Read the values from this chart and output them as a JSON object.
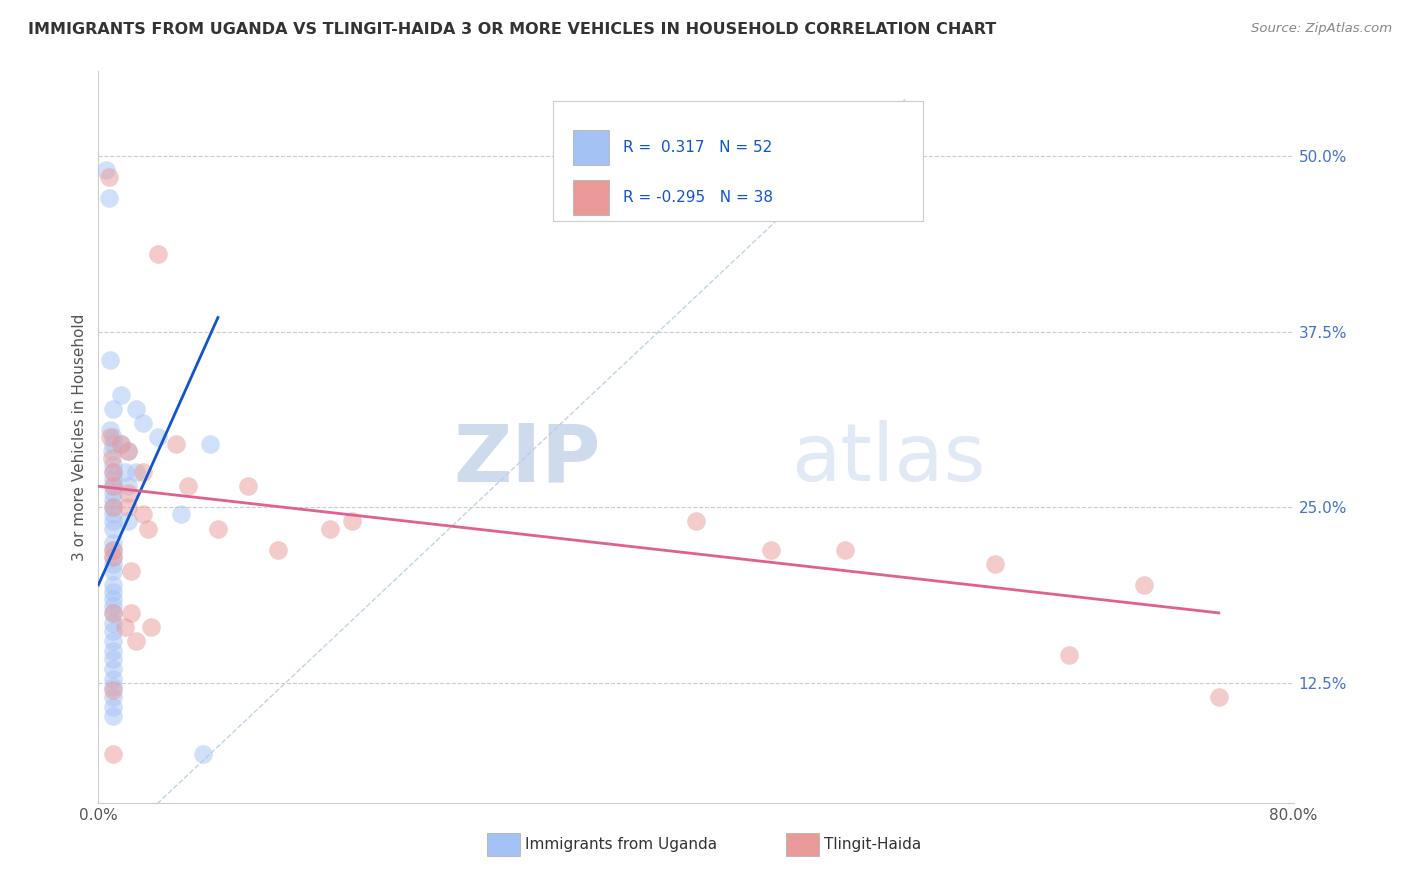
{
  "title": "IMMIGRANTS FROM UGANDA VS TLINGIT-HAIDA 3 OR MORE VEHICLES IN HOUSEHOLD CORRELATION CHART",
  "source": "Source: ZipAtlas.com",
  "ylabel": "3 or more Vehicles in Household",
  "ytick_labels": [
    "50.0%",
    "37.5%",
    "25.0%",
    "12.5%"
  ],
  "ytick_values": [
    0.5,
    0.375,
    0.25,
    0.125
  ],
  "xlim": [
    0.0,
    0.8
  ],
  "ylim": [
    0.04,
    0.56
  ],
  "legend_blue_r": "0.317",
  "legend_blue_n": "52",
  "legend_pink_r": "-0.295",
  "legend_pink_n": "38",
  "legend_label_blue": "Immigrants from Uganda",
  "legend_label_pink": "Tlingit-Haida",
  "blue_color": "#a4c2f4",
  "pink_color": "#ea9999",
  "blue_line_color": "#1155cc",
  "pink_line_color": "#e06090",
  "diagonal_color": "#b0c8e8",
  "watermark_zip": "ZIP",
  "watermark_atlas": "atlas",
  "blue_dots": [
    [
      0.005,
      0.49
    ],
    [
      0.007,
      0.47
    ],
    [
      0.008,
      0.355
    ],
    [
      0.008,
      0.305
    ],
    [
      0.009,
      0.29
    ],
    [
      0.01,
      0.295
    ],
    [
      0.01,
      0.3
    ],
    [
      0.01,
      0.32
    ],
    [
      0.01,
      0.28
    ],
    [
      0.01,
      0.275
    ],
    [
      0.01,
      0.27
    ],
    [
      0.01,
      0.265
    ],
    [
      0.01,
      0.26
    ],
    [
      0.01,
      0.255
    ],
    [
      0.01,
      0.25
    ],
    [
      0.01,
      0.245
    ],
    [
      0.01,
      0.24
    ],
    [
      0.01,
      0.235
    ],
    [
      0.01,
      0.225
    ],
    [
      0.01,
      0.22
    ],
    [
      0.01,
      0.215
    ],
    [
      0.01,
      0.21
    ],
    [
      0.01,
      0.205
    ],
    [
      0.01,
      0.195
    ],
    [
      0.01,
      0.19
    ],
    [
      0.01,
      0.185
    ],
    [
      0.01,
      0.18
    ],
    [
      0.01,
      0.175
    ],
    [
      0.01,
      0.168
    ],
    [
      0.01,
      0.162
    ],
    [
      0.01,
      0.155
    ],
    [
      0.01,
      0.148
    ],
    [
      0.01,
      0.142
    ],
    [
      0.01,
      0.135
    ],
    [
      0.01,
      0.128
    ],
    [
      0.01,
      0.122
    ],
    [
      0.01,
      0.115
    ],
    [
      0.01,
      0.108
    ],
    [
      0.01,
      0.102
    ],
    [
      0.015,
      0.33
    ],
    [
      0.015,
      0.295
    ],
    [
      0.018,
      0.275
    ],
    [
      0.02,
      0.29
    ],
    [
      0.02,
      0.265
    ],
    [
      0.02,
      0.24
    ],
    [
      0.025,
      0.32
    ],
    [
      0.025,
      0.275
    ],
    [
      0.03,
      0.31
    ],
    [
      0.04,
      0.3
    ],
    [
      0.055,
      0.245
    ],
    [
      0.07,
      0.075
    ],
    [
      0.075,
      0.295
    ]
  ],
  "pink_dots": [
    [
      0.007,
      0.485
    ],
    [
      0.008,
      0.3
    ],
    [
      0.009,
      0.285
    ],
    [
      0.01,
      0.275
    ],
    [
      0.01,
      0.265
    ],
    [
      0.01,
      0.25
    ],
    [
      0.01,
      0.22
    ],
    [
      0.01,
      0.215
    ],
    [
      0.01,
      0.175
    ],
    [
      0.01,
      0.12
    ],
    [
      0.01,
      0.075
    ],
    [
      0.015,
      0.295
    ],
    [
      0.018,
      0.165
    ],
    [
      0.02,
      0.29
    ],
    [
      0.02,
      0.26
    ],
    [
      0.02,
      0.25
    ],
    [
      0.022,
      0.205
    ],
    [
      0.022,
      0.175
    ],
    [
      0.025,
      0.155
    ],
    [
      0.03,
      0.275
    ],
    [
      0.03,
      0.245
    ],
    [
      0.033,
      0.235
    ],
    [
      0.035,
      0.165
    ],
    [
      0.04,
      0.43
    ],
    [
      0.052,
      0.295
    ],
    [
      0.06,
      0.265
    ],
    [
      0.08,
      0.235
    ],
    [
      0.1,
      0.265
    ],
    [
      0.12,
      0.22
    ],
    [
      0.155,
      0.235
    ],
    [
      0.17,
      0.24
    ],
    [
      0.4,
      0.24
    ],
    [
      0.45,
      0.22
    ],
    [
      0.5,
      0.22
    ],
    [
      0.6,
      0.21
    ],
    [
      0.65,
      0.145
    ],
    [
      0.7,
      0.195
    ],
    [
      0.75,
      0.115
    ]
  ],
  "blue_line": [
    [
      0.0,
      0.195
    ],
    [
      0.08,
      0.385
    ]
  ],
  "pink_line": [
    [
      0.0,
      0.265
    ],
    [
      0.75,
      0.175
    ]
  ]
}
